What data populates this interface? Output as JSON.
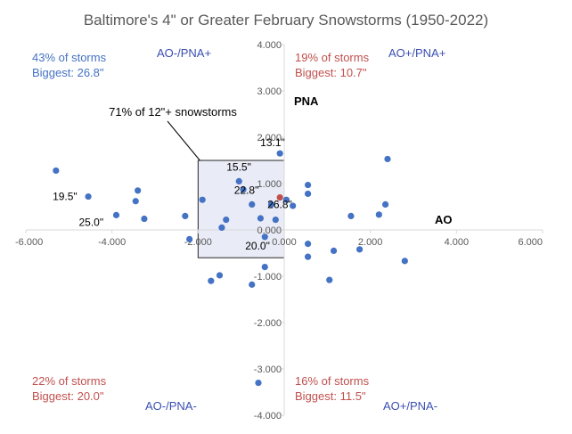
{
  "chart_data": {
    "type": "scatter",
    "title": "Baltimore's 4\" or Greater February Snowstorms (1950-2022)",
    "xlabel": "AO",
    "ylabel": "PNA",
    "xlim": [
      -6,
      6
    ],
    "ylim": [
      -4,
      4
    ],
    "x_ticks": [
      "-6.000",
      "-4.000",
      "-2.000",
      "0.000",
      "2.000",
      "4.000",
      "6.000"
    ],
    "y_ticks": [
      "-4.000",
      "-3.000",
      "-2.000",
      "-1.000",
      "0.000",
      "1.000",
      "2.000",
      "3.000",
      "4.000"
    ],
    "grid": false,
    "series": [
      {
        "color": "#4472c4",
        "points": [
          {
            "x": -5.3,
            "y": 1.28
          },
          {
            "x": -4.55,
            "y": 0.72
          },
          {
            "x": -3.9,
            "y": 0.32
          },
          {
            "x": -3.4,
            "y": 0.85
          },
          {
            "x": -3.45,
            "y": 0.62
          },
          {
            "x": -3.25,
            "y": 0.24
          },
          {
            "x": -2.3,
            "y": 0.3
          },
          {
            "x": -2.2,
            "y": -0.2
          },
          {
            "x": -1.9,
            "y": 0.65
          },
          {
            "x": -1.7,
            "y": -1.1
          },
          {
            "x": -1.45,
            "y": 0.05
          },
          {
            "x": -1.35,
            "y": 0.22
          },
          {
            "x": -1.05,
            "y": 1.05
          },
          {
            "x": -0.95,
            "y": 0.87
          },
          {
            "x": -0.75,
            "y": 0.55
          },
          {
            "x": -0.55,
            "y": 0.25
          },
          {
            "x": -0.45,
            "y": -0.8
          },
          {
            "x": -0.45,
            "y": -0.15
          },
          {
            "x": -0.3,
            "y": 0.55
          },
          {
            "x": -0.2,
            "y": 0.22
          },
          {
            "x": -0.1,
            "y": 1.65
          },
          {
            "x": 0.05,
            "y": 0.65
          },
          {
            "x": 0.2,
            "y": 0.52
          },
          {
            "x": 0.55,
            "y": 0.97
          },
          {
            "x": 0.55,
            "y": 0.78
          },
          {
            "x": 0.55,
            "y": -0.3
          },
          {
            "x": 0.55,
            "y": -0.58
          },
          {
            "x": 1.15,
            "y": -0.45
          },
          {
            "x": 1.05,
            "y": -1.08
          },
          {
            "x": 1.55,
            "y": 0.3
          },
          {
            "x": 1.75,
            "y": -0.42
          },
          {
            "x": 2.2,
            "y": 0.33
          },
          {
            "x": 2.35,
            "y": 0.55
          },
          {
            "x": 2.4,
            "y": 1.53
          },
          {
            "x": 2.8,
            "y": -0.67
          },
          {
            "x": -1.5,
            "y": -0.98
          },
          {
            "x": -0.75,
            "y": -1.18
          },
          {
            "x": -0.6,
            "y": -3.3
          }
        ]
      },
      {
        "color": "#c0504d",
        "points": [
          {
            "x": -0.1,
            "y": 0.7
          }
        ]
      }
    ],
    "shaded_box": {
      "x": [
        -2.0,
        0.0
      ],
      "y": [
        -0.6,
        1.5
      ],
      "label": "71% of 12\"+ snowstorms"
    },
    "data_labels": [
      {
        "text": "19.5\"",
        "x": -4.55,
        "y": 0.72
      },
      {
        "text": "25.0\"",
        "x": -3.9,
        "y": 0.32
      },
      {
        "text": "13.1\"",
        "x": -0.1,
        "y": 1.65
      },
      {
        "text": "15.5\"",
        "x": -1.05,
        "y": 1.05
      },
      {
        "text": "22.8\"",
        "x": -0.75,
        "y": 0.55
      },
      {
        "text": "26.8\"",
        "x": -0.1,
        "y": 0.7
      },
      {
        "text": "20.0\"",
        "x": -0.45,
        "y": -0.15
      }
    ],
    "quadrants": [
      {
        "name": "AO-/PNA+",
        "pct": "43% of storms",
        "biggest": "Biggest: 26.8\"",
        "color": "#4472c4"
      },
      {
        "name": "AO+/PNA+",
        "pct": "19% of storms",
        "biggest": "Biggest: 10.7\"",
        "color": "#c0504d"
      },
      {
        "name": "AO-/PNA-",
        "pct": "22% of storms",
        "biggest": "Biggest: 20.0\"",
        "color": "#c0504d"
      },
      {
        "name": "AO+/PNA-",
        "pct": "16% of storms",
        "biggest": "Biggest: 11.5\"",
        "color": "#c0504d"
      }
    ],
    "quadrant_label_color": "#3a4fb0"
  }
}
